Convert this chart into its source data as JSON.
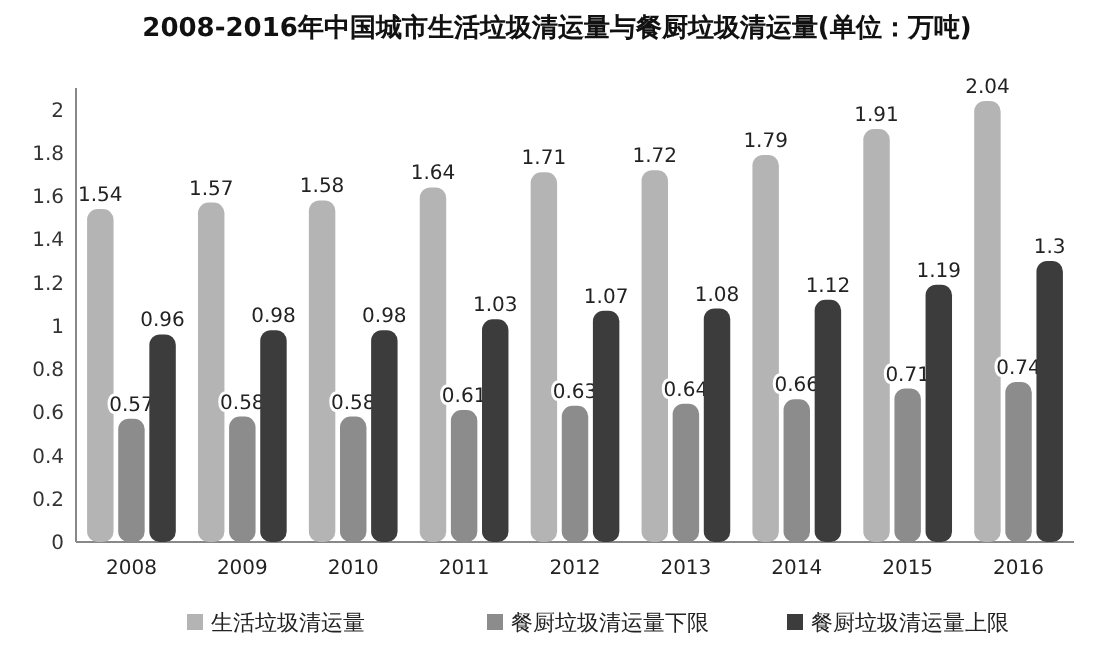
{
  "chart_data": {
    "type": "bar",
    "title": "2008-2016年中国城市生活垃圾清运量与餐厨垃圾清运量(单位：万吨)",
    "categories": [
      "2008",
      "2009",
      "2010",
      "2011",
      "2012",
      "2013",
      "2014",
      "2015",
      "2016"
    ],
    "series": [
      {
        "name": "生活垃圾清运量",
        "color": "#b4b4b4",
        "values": [
          1.54,
          1.57,
          1.58,
          1.64,
          1.71,
          1.72,
          1.79,
          1.91,
          2.04
        ]
      },
      {
        "name": "餐厨垃圾清运量下限",
        "color": "#8c8c8c",
        "values": [
          0.57,
          0.58,
          0.58,
          0.61,
          0.63,
          0.64,
          0.66,
          0.71,
          0.74
        ]
      },
      {
        "name": "餐厨垃圾清运量上限",
        "color": "#3c3c3c",
        "values": [
          0.96,
          0.98,
          0.98,
          1.03,
          1.07,
          1.08,
          1.12,
          1.19,
          1.3
        ]
      }
    ],
    "ylim": [
      0,
      2.1
    ],
    "yticks": [
      0,
      0.2,
      0.4,
      0.6,
      0.8,
      1,
      1.2,
      1.4,
      1.6,
      1.8,
      2
    ],
    "data_labels": true,
    "legend": "bottom",
    "grid": false
  }
}
